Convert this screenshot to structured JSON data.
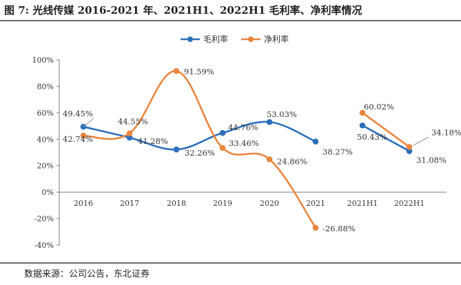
{
  "figure_title": "图 7: 光线传媒 2016-2021 年、2021H1、2022H1 毛利率、净利率情况",
  "source_note": "数据来源：公司公告，东北证券",
  "colors": {
    "gross": "#2c6fba",
    "net": "#e8863f",
    "axis": "#7a7a7a"
  },
  "chart_data": {
    "type": "line",
    "title": "光线传媒 2016-2021 年、2021H1、2022H1 毛利率、净利率情况",
    "categories": [
      "2016",
      "2017",
      "2018",
      "2019",
      "2020",
      "2021",
      "2021H1",
      "2022H1"
    ],
    "ylim": [
      -40,
      100
    ],
    "yticks": [
      -40,
      -20,
      0,
      20,
      40,
      60,
      80,
      100
    ],
    "ytick_labels": [
      "-40%",
      "-20%",
      "0%",
      "20%",
      "40%",
      "60%",
      "80%",
      "100%"
    ],
    "xlabel": "",
    "ylabel": "",
    "legend_position": "top-center",
    "series": [
      {
        "name": "毛利率",
        "color": "#2c6fba",
        "segments": [
          [
            0,
            5
          ],
          [
            6,
            7
          ]
        ],
        "values": [
          49.45,
          41.28,
          32.26,
          44.76,
          53.03,
          38.27,
          50.43,
          31.08
        ],
        "labels": [
          "49.45%",
          "41.28%",
          "32.26%",
          "44.76%",
          "53.03%",
          "38.27%",
          "50.43%",
          "31.08%"
        ]
      },
      {
        "name": "净利率",
        "color": "#e8863f",
        "segments": [
          [
            0,
            5
          ],
          [
            6,
            7
          ]
        ],
        "values": [
          42.74,
          44.55,
          91.59,
          33.46,
          24.86,
          -26.88,
          60.02,
          34.18
        ],
        "labels": [
          "42.74%",
          "44.55%",
          "91.59%",
          "33.46%",
          "24.86%",
          "-26.88%",
          "60.02%",
          "34.18%"
        ]
      }
    ]
  }
}
